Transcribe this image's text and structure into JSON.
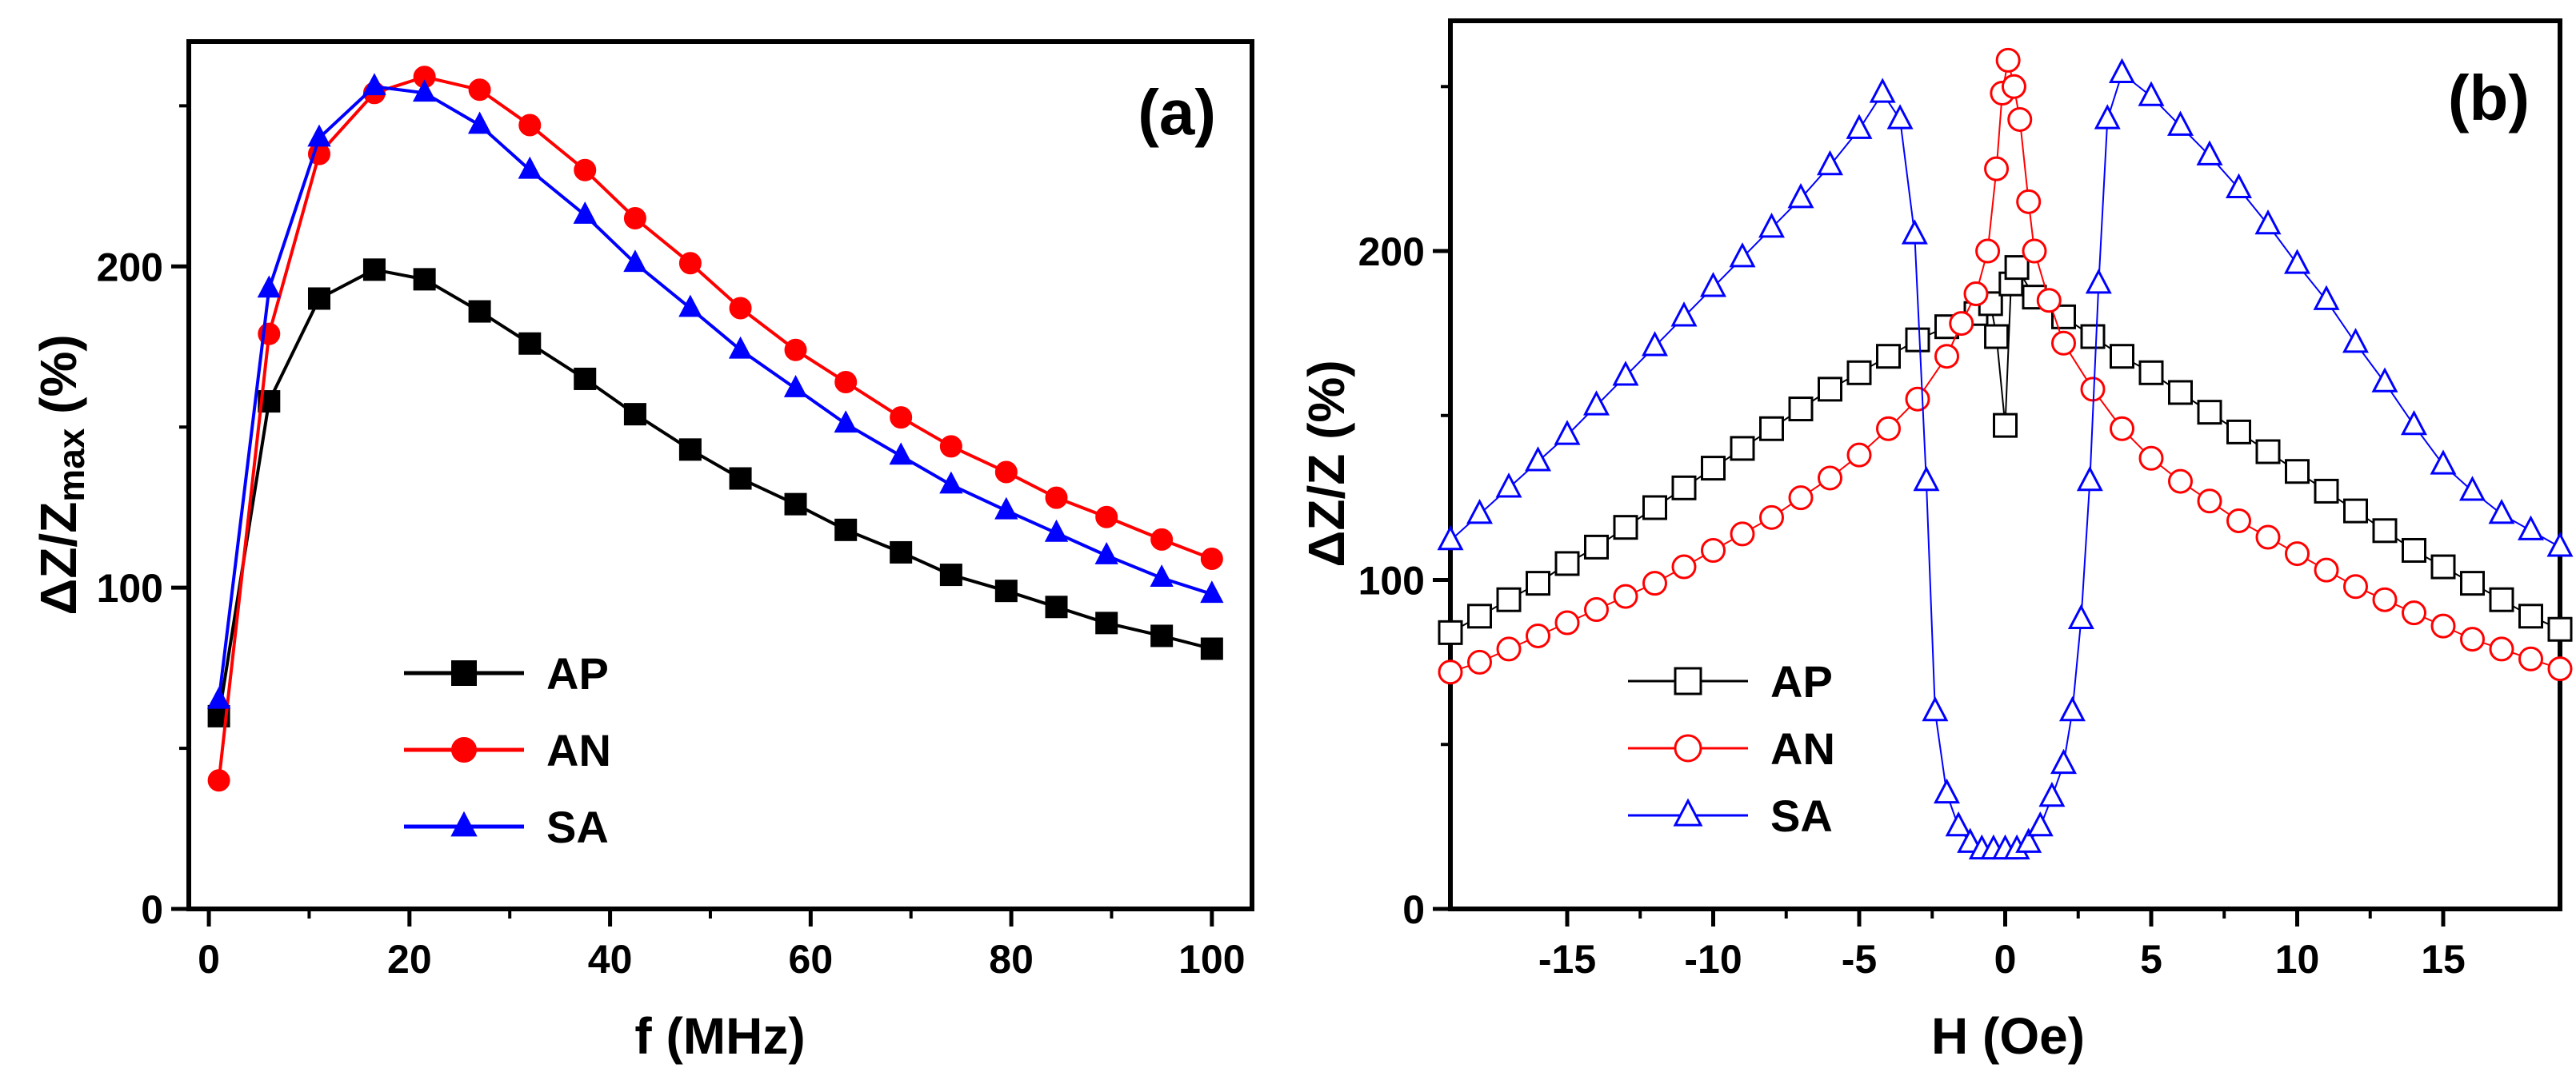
{
  "chart_data": [
    {
      "type": "line",
      "panel_label": "(a)",
      "xlabel": "f (MHz)",
      "ylabel_main": "ΔZ/Z",
      "ylabel_sub": "max",
      "ylabel_tail": " (%)",
      "xlim": [
        -2,
        104
      ],
      "ylim": [
        0,
        270
      ],
      "xticks": [
        0,
        20,
        40,
        60,
        80,
        100
      ],
      "yticks": [
        0,
        100,
        200
      ],
      "legend_position": "lower-center",
      "grid": false,
      "x": [
        1,
        6,
        11,
        16.5,
        21.5,
        27,
        32,
        37.5,
        42.5,
        48,
        53,
        58.5,
        63.5,
        69,
        74,
        79.5,
        84.5,
        89.5,
        95,
        100
      ],
      "series": [
        {
          "name": "AP",
          "color": "#000000",
          "marker": "square",
          "filled": true,
          "values": [
            60,
            158,
            190,
            199,
            196,
            186,
            176,
            165,
            154,
            143,
            134,
            126,
            118,
            111,
            104,
            99,
            94,
            89,
            85,
            81
          ]
        },
        {
          "name": "AN",
          "color": "#ff0000",
          "marker": "circle",
          "filled": true,
          "values": [
            40,
            179,
            235,
            254,
            259,
            255,
            244,
            230,
            215,
            201,
            187,
            174,
            164,
            153,
            144,
            136,
            128,
            122,
            115,
            109
          ]
        },
        {
          "name": "SA",
          "color": "#0000ff",
          "marker": "triangle",
          "filled": true,
          "values": [
            65,
            193,
            240,
            256,
            254,
            244,
            230,
            216,
            201,
            187,
            174,
            162,
            151,
            141,
            132,
            124,
            117,
            110,
            103,
            98
          ]
        }
      ]
    },
    {
      "type": "line",
      "panel_label": "(b)",
      "xlabel": "H (Oe)",
      "ylabel_main": "ΔZ/Z",
      "ylabel_tail": " (%)",
      "xlim": [
        -19,
        19
      ],
      "ylim": [
        0,
        270
      ],
      "xticks": [
        -15,
        -10,
        -5,
        0,
        5,
        10,
        15
      ],
      "yticks": [
        0,
        100,
        200
      ],
      "legend_position": "lower-left",
      "grid": false,
      "series": [
        {
          "name": "AP",
          "color": "#000000",
          "marker": "square",
          "filled": false,
          "points": [
            [
              -19,
              84
            ],
            [
              -18,
              89
            ],
            [
              -17,
              94
            ],
            [
              -16,
              99
            ],
            [
              -15,
              105
            ],
            [
              -14,
              110
            ],
            [
              -13,
              116
            ],
            [
              -12,
              122
            ],
            [
              -11,
              128
            ],
            [
              -10,
              134
            ],
            [
              -9,
              140
            ],
            [
              -8,
              146
            ],
            [
              -7,
              152
            ],
            [
              -6,
              158
            ],
            [
              -5,
              163
            ],
            [
              -4,
              168
            ],
            [
              -3,
              173
            ],
            [
              -2,
              177
            ],
            [
              -1,
              181
            ],
            [
              -0.5,
              184
            ],
            [
              -0.3,
              174
            ],
            [
              0,
              147
            ],
            [
              0.2,
              190
            ],
            [
              0.4,
              195
            ],
            [
              1,
              186
            ],
            [
              2,
              180
            ],
            [
              3,
              174
            ],
            [
              4,
              168
            ],
            [
              5,
              163
            ],
            [
              6,
              157
            ],
            [
              7,
              151
            ],
            [
              8,
              145
            ],
            [
              9,
              139
            ],
            [
              10,
              133
            ],
            [
              11,
              127
            ],
            [
              12,
              121
            ],
            [
              13,
              115
            ],
            [
              14,
              109
            ],
            [
              15,
              104
            ],
            [
              16,
              99
            ],
            [
              17,
              94
            ],
            [
              18,
              89
            ],
            [
              19,
              85
            ]
          ]
        },
        {
          "name": "AN",
          "color": "#ff0000",
          "marker": "circle",
          "filled": false,
          "points": [
            [
              -19,
              72
            ],
            [
              -18,
              75
            ],
            [
              -17,
              79
            ],
            [
              -16,
              83
            ],
            [
              -15,
              87
            ],
            [
              -14,
              91
            ],
            [
              -13,
              95
            ],
            [
              -12,
              99
            ],
            [
              -11,
              104
            ],
            [
              -10,
              109
            ],
            [
              -9,
              114
            ],
            [
              -8,
              119
            ],
            [
              -7,
              125
            ],
            [
              -6,
              131
            ],
            [
              -5,
              138
            ],
            [
              -4,
              146
            ],
            [
              -3,
              155
            ],
            [
              -2,
              168
            ],
            [
              -1.5,
              178
            ],
            [
              -1,
              187
            ],
            [
              -0.6,
              200
            ],
            [
              -0.3,
              225
            ],
            [
              -0.1,
              248
            ],
            [
              0.1,
              258
            ],
            [
              0.3,
              250
            ],
            [
              0.5,
              240
            ],
            [
              0.8,
              215
            ],
            [
              1,
              200
            ],
            [
              1.5,
              185
            ],
            [
              2,
              172
            ],
            [
              3,
              158
            ],
            [
              4,
              146
            ],
            [
              5,
              137
            ],
            [
              6,
              130
            ],
            [
              7,
              124
            ],
            [
              8,
              118
            ],
            [
              9,
              113
            ],
            [
              10,
              108
            ],
            [
              11,
              103
            ],
            [
              12,
              98
            ],
            [
              13,
              94
            ],
            [
              14,
              90
            ],
            [
              15,
              86
            ],
            [
              16,
              82
            ],
            [
              17,
              79
            ],
            [
              18,
              76
            ],
            [
              19,
              73
            ]
          ]
        },
        {
          "name": "SA",
          "color": "#0000ff",
          "marker": "triangle",
          "filled": false,
          "points": [
            [
              -19,
              112
            ],
            [
              -18,
              120
            ],
            [
              -17,
              128
            ],
            [
              -16,
              136
            ],
            [
              -15,
              144
            ],
            [
              -14,
              153
            ],
            [
              -13,
              162
            ],
            [
              -12,
              171
            ],
            [
              -11,
              180
            ],
            [
              -10,
              189
            ],
            [
              -9,
              198
            ],
            [
              -8,
              207
            ],
            [
              -7,
              216
            ],
            [
              -6,
              226
            ],
            [
              -5,
              237
            ],
            [
              -4.2,
              248
            ],
            [
              -3.6,
              240
            ],
            [
              -3.1,
              205
            ],
            [
              -2.7,
              130
            ],
            [
              -2.4,
              60
            ],
            [
              -2,
              35
            ],
            [
              -1.6,
              25
            ],
            [
              -1.2,
              20
            ],
            [
              -0.8,
              18
            ],
            [
              -0.4,
              18
            ],
            [
              0,
              18
            ],
            [
              0.4,
              18
            ],
            [
              0.8,
              20
            ],
            [
              1.2,
              25
            ],
            [
              1.6,
              34
            ],
            [
              2,
              44
            ],
            [
              2.3,
              60
            ],
            [
              2.6,
              88
            ],
            [
              2.9,
              130
            ],
            [
              3.2,
              190
            ],
            [
              3.5,
              240
            ],
            [
              4,
              254
            ],
            [
              5,
              247
            ],
            [
              6,
              238
            ],
            [
              7,
              229
            ],
            [
              8,
              219
            ],
            [
              9,
              208
            ],
            [
              10,
              196
            ],
            [
              11,
              185
            ],
            [
              12,
              172
            ],
            [
              13,
              160
            ],
            [
              14,
              147
            ],
            [
              15,
              135
            ],
            [
              16,
              127
            ],
            [
              17,
              120
            ],
            [
              18,
              115
            ],
            [
              19,
              110
            ]
          ]
        }
      ]
    }
  ]
}
